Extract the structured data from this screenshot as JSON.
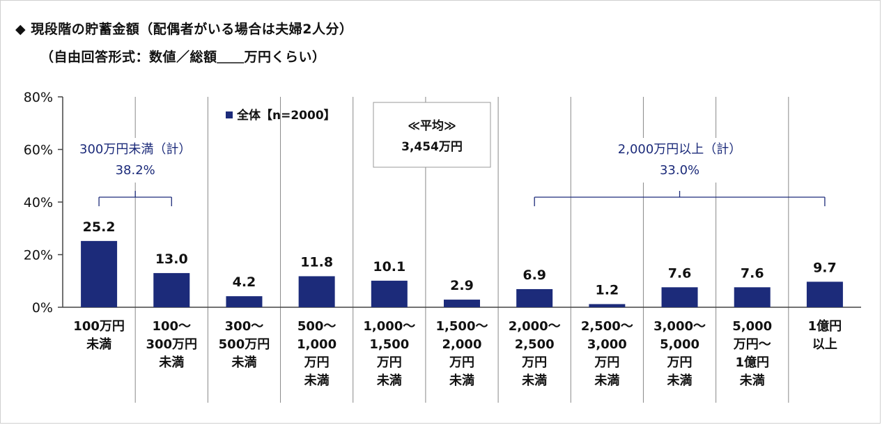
{
  "title_line1": "◆ 現段階の貯蓄金額（配偶者がいる場合は夫婦2人分）",
  "title_line2": "（自由回答形式：数値／総額＿＿万円くらい）",
  "chart_data": {
    "type": "bar",
    "categories": [
      [
        "100万円",
        "未満"
      ],
      [
        "100～",
        "300万円",
        "未満"
      ],
      [
        "300～",
        "500万円",
        "未満"
      ],
      [
        "500～",
        "1,000",
        "万円",
        "未満"
      ],
      [
        "1,000～",
        "1,500",
        "万円",
        "未満"
      ],
      [
        "1,500～",
        "2,000",
        "万円",
        "未満"
      ],
      [
        "2,000～",
        "2,500",
        "万円",
        "未満"
      ],
      [
        "2,500～",
        "3,000",
        "万円",
        "未満"
      ],
      [
        "3,000～",
        "5,000",
        "万円",
        "未満"
      ],
      [
        "5,000",
        "万円～",
        "1億円",
        "未満"
      ],
      [
        "1億円",
        "以上"
      ]
    ],
    "series": [
      {
        "name": "全体【n=2000】",
        "values": [
          25.2,
          13.0,
          4.2,
          11.8,
          10.1,
          2.9,
          6.9,
          1.2,
          7.6,
          7.6,
          9.7
        ],
        "value_labels": [
          "25.2",
          "13.0",
          "4.2",
          "11.8",
          "10.1",
          "2.9",
          "6.9",
          "1.2",
          "7.6",
          "7.6",
          "9.7"
        ]
      }
    ],
    "ylim": [
      0,
      80
    ],
    "yticks": [
      0,
      20,
      40,
      60,
      80
    ],
    "ytick_labels": [
      "0%",
      "20%",
      "40%",
      "60%",
      "80%"
    ],
    "xlabel": "",
    "ylabel": "",
    "grid": "vertical separators",
    "legend": {
      "label": "全体【n=2000】",
      "position": "top-left"
    },
    "average_box": {
      "line1": "≪平均≫",
      "line2": "3,454万円"
    },
    "group_annotations": [
      {
        "label": "300万円未満（計）",
        "value": "38.2%",
        "from_category": 0,
        "to_category": 1
      },
      {
        "label": "2,000万円以上（計）",
        "value": "33.0%",
        "from_category": 6,
        "to_category": 10
      }
    ],
    "colors": {
      "bar": "#1c2b7a",
      "annotation": "#1c2b7a",
      "axis": "#444444",
      "separator": "#888888"
    }
  }
}
